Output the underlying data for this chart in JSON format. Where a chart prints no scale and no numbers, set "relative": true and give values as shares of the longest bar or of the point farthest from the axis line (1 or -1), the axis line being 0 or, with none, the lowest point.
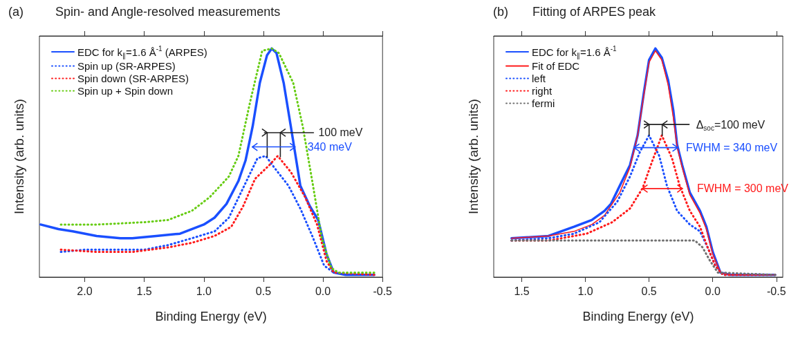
{
  "chart_data": [
    {
      "type": "line",
      "title": "Spin- and Angle-resolved measurements",
      "xlabel": "Binding Energy (eV)",
      "ylabel": "Intensity (arb. units)",
      "relative": true,
      "tick_labels": "x",
      "legend": "top left",
      "marker": "none",
      "xlim": [
        2.38,
        -0.5
      ],
      "xticks": [
        {
          "value": 2,
          "label": "2.0"
        },
        1.5,
        {
          "value": 1,
          "label": "1.0"
        },
        0.5,
        {
          "value": 0,
          "label": "0.0"
        },
        -0.5
      ],
      "annotations": [
        "(a)",
        "100 meV",
        "340 meV"
      ],
      "series": [
        {
          "name": "EDC for k$_{∥}$=1.6 Å$^{-1}$ (ARPES)",
          "color": "#1a4fff",
          "line_style": "solid",
          "x": [
            2.37,
            2.22,
            2.1,
            1.9,
            1.7,
            1.6,
            1.4,
            1.2,
            1.0,
            0.91,
            0.81,
            0.71,
            0.65,
            0.59,
            0.53,
            0.47,
            0.43,
            0.39,
            0.33,
            0.27,
            0.19,
            0.11,
            0.04,
            -0.03,
            -0.09,
            -0.19,
            -0.43
          ],
          "values": [
            0.23,
            0.21,
            0.2,
            0.18,
            0.17,
            0.17,
            0.18,
            0.19,
            0.23,
            0.26,
            0.32,
            0.42,
            0.51,
            0.66,
            0.85,
            0.97,
            1.0,
            0.98,
            0.85,
            0.66,
            0.4,
            0.31,
            0.25,
            0.1,
            0.02,
            0.01,
            0.01
          ]
        },
        {
          "name": "Spin up (SR-ARPES)",
          "color": "#1a4fff",
          "line_style": "dotted",
          "x": [
            2.2,
            2.0,
            1.7,
            1.5,
            1.3,
            1.1,
            0.91,
            0.79,
            0.67,
            0.55,
            0.48,
            0.41,
            0.29,
            0.19,
            0.09,
            -0.01,
            -0.09,
            -0.43
          ],
          "values": [
            0.11,
            0.12,
            0.12,
            0.12,
            0.14,
            0.17,
            0.2,
            0.26,
            0.39,
            0.52,
            0.53,
            0.48,
            0.4,
            0.3,
            0.18,
            0.05,
            0.02,
            0.01
          ]
        },
        {
          "name": "Spin down (SR-ARPES)",
          "color": "#ff1a1a",
          "line_style": "dotted",
          "x": [
            2.2,
            1.9,
            1.6,
            1.3,
            1.1,
            0.91,
            0.77,
            0.67,
            0.57,
            0.45,
            0.38,
            0.27,
            0.15,
            0.05,
            -0.03,
            -0.09,
            -0.43
          ],
          "values": [
            0.12,
            0.11,
            0.11,
            0.13,
            0.15,
            0.18,
            0.22,
            0.31,
            0.43,
            0.49,
            0.53,
            0.46,
            0.35,
            0.23,
            0.07,
            0.02,
            0.01
          ]
        },
        {
          "name": "Spin up + Spin down",
          "color": "#66cc11",
          "line_style": "dotted",
          "x": [
            2.2,
            1.9,
            1.5,
            1.3,
            1.1,
            0.95,
            0.79,
            0.71,
            0.61,
            0.51,
            0.43,
            0.37,
            0.25,
            0.17,
            0.09,
            0.01,
            -0.07,
            -0.13,
            -0.43
          ],
          "values": [
            0.23,
            0.23,
            0.24,
            0.25,
            0.29,
            0.35,
            0.44,
            0.53,
            0.77,
            0.99,
            1.0,
            0.98,
            0.85,
            0.66,
            0.42,
            0.17,
            0.04,
            0.02,
            0.02
          ]
        }
      ]
    },
    {
      "type": "line",
      "title": "Fitting of ARPES peak",
      "xlabel": "Binding Energy (eV)",
      "ylabel": "Intensity (arb. units)",
      "relative": true,
      "tick_labels": "x",
      "legend": "top left",
      "marker": "none",
      "xlim": [
        1.72,
        -0.55
      ],
      "xticks": [
        1.5,
        {
          "value": 1,
          "label": "1.0"
        },
        0.5,
        {
          "value": 0,
          "label": "0.0"
        },
        -0.5
      ],
      "annotations": [
        "(b)",
        "Δ$_{soc}$=100 meV",
        "FWHM = 340 meV",
        "FWHM = 300 meV"
      ],
      "series": [
        {
          "name": "EDC for k$_{∥}$=1.6 Å$^{-1}$",
          "color": "#1a4fff",
          "line_style": "solid",
          "x": [
            1.58,
            1.29,
            1.09,
            0.95,
            0.85,
            0.8,
            0.73,
            0.65,
            0.59,
            0.54,
            0.5,
            0.45,
            0.4,
            0.35,
            0.31,
            0.28,
            0.24,
            0.18,
            0.1,
            0.05,
            0.0,
            -0.06,
            -0.14,
            -0.49
          ],
          "values": [
            0.17,
            0.18,
            0.22,
            0.25,
            0.29,
            0.32,
            0.4,
            0.49,
            0.62,
            0.81,
            0.95,
            1.0,
            0.96,
            0.86,
            0.73,
            0.58,
            0.49,
            0.37,
            0.29,
            0.22,
            0.11,
            0.02,
            0.01,
            0.01
          ]
        },
        {
          "name": "Fit of EDC",
          "color": "#ff1a1a",
          "line_style": "solid",
          "x": [
            1.58,
            1.29,
            1.09,
            0.95,
            0.85,
            0.73,
            0.65,
            0.59,
            0.54,
            0.5,
            0.45,
            0.4,
            0.35,
            0.31,
            0.28,
            0.24,
            0.18,
            0.1,
            0.05,
            0.0,
            -0.06,
            -0.14,
            -0.49
          ],
          "values": [
            0.17,
            0.18,
            0.2,
            0.23,
            0.27,
            0.37,
            0.48,
            0.62,
            0.8,
            0.94,
            0.99,
            0.95,
            0.84,
            0.7,
            0.57,
            0.48,
            0.36,
            0.28,
            0.21,
            0.1,
            0.02,
            0.01,
            0.01
          ]
        },
        {
          "name": "left",
          "color": "#1a4fff",
          "line_style": "dotted",
          "x": [
            1.58,
            1.29,
            1.09,
            0.89,
            0.75,
            0.65,
            0.57,
            0.5,
            0.42,
            0.36,
            0.28,
            0.18,
            0.1,
            0.04,
            -0.02,
            -0.08,
            -0.49
          ],
          "values": [
            0.16,
            0.17,
            0.19,
            0.24,
            0.33,
            0.44,
            0.55,
            0.62,
            0.53,
            0.4,
            0.29,
            0.23,
            0.2,
            0.13,
            0.05,
            0.01,
            0.01
          ]
        },
        {
          "name": "right",
          "color": "#ff1a1a",
          "line_style": "dotted",
          "x": [
            1.58,
            1.29,
            0.99,
            0.79,
            0.65,
            0.55,
            0.48,
            0.4,
            0.32,
            0.26,
            0.18,
            0.1,
            0.04,
            -0.02,
            -0.08,
            -0.49
          ],
          "values": [
            0.16,
            0.16,
            0.19,
            0.24,
            0.3,
            0.39,
            0.5,
            0.62,
            0.52,
            0.4,
            0.29,
            0.22,
            0.13,
            0.05,
            0.01,
            0.01
          ]
        },
        {
          "name": "fermi",
          "color": "#707070",
          "line_style": "dotted",
          "x": [
            1.58,
            0.14,
            0.08,
            0.02,
            -0.04,
            -0.49
          ],
          "values": [
            0.16,
            0.16,
            0.13,
            0.07,
            0.02,
            0.01
          ]
        }
      ]
    }
  ]
}
